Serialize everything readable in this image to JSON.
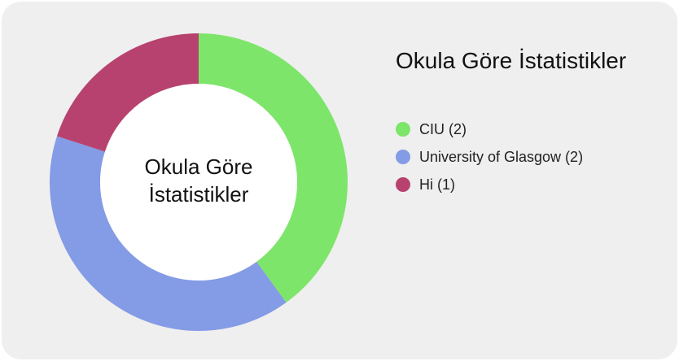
{
  "chart_data": {
    "type": "pie",
    "title": "Okula Göre İstatistikler",
    "center_label": "Okula Göre\nİstatistikler",
    "legend_placement": "right",
    "series": [
      {
        "name": "CIU",
        "legend_label": "CIU (2)",
        "value": 2,
        "color": "#7de56a"
      },
      {
        "name": "University of Glasgow",
        "legend_label": "University of Glasgow (2)",
        "value": 2,
        "color": "#849be5"
      },
      {
        "name": "Hi",
        "legend_label": "Hi (1)",
        "value": 1,
        "color": "#b8426f"
      }
    ]
  },
  "legend": {
    "title": "Okula Göre İstatistikler"
  }
}
